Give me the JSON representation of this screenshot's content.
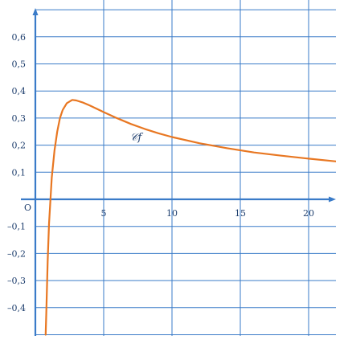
{
  "chart_data": {
    "type": "line",
    "title": "",
    "xlabel": "",
    "ylabel": "",
    "xlim": [
      -1,
      22
    ],
    "ylim": [
      -0.5,
      0.7
    ],
    "grid": true,
    "x_grid_step": 5,
    "y_grid_step": 0.1,
    "x_ticks": [
      {
        "value": 5,
        "label": "5"
      },
      {
        "value": 10,
        "label": "10"
      },
      {
        "value": 15,
        "label": "15"
      },
      {
        "value": 20,
        "label": "20"
      }
    ],
    "y_ticks": [
      {
        "value": 0.6,
        "label": "0,6"
      },
      {
        "value": 0.5,
        "label": "0,5"
      },
      {
        "value": 0.4,
        "label": "0,4"
      },
      {
        "value": 0.3,
        "label": "0,3"
      },
      {
        "value": 0.2,
        "label": "0,2"
      },
      {
        "value": 0.1,
        "label": "0,1"
      },
      {
        "value": -0.1,
        "label": "–0,1"
      },
      {
        "value": -0.2,
        "label": "–0,2"
      },
      {
        "value": -0.3,
        "label": "–0,3"
      },
      {
        "value": -0.4,
        "label": "–0,4"
      }
    ],
    "origin_label": "O",
    "series": [
      {
        "label": "𝒞f",
        "color": "#e87722",
        "points": [
          [
            0.75,
            -0.5
          ],
          [
            0.8,
            -0.42
          ],
          [
            0.9,
            -0.23
          ],
          [
            1.0,
            -0.09
          ],
          [
            1.2,
            0.08
          ],
          [
            1.4,
            0.18
          ],
          [
            1.6,
            0.25
          ],
          [
            1.8,
            0.3
          ],
          [
            2.0,
            0.33
          ],
          [
            2.3,
            0.355
          ],
          [
            2.7,
            0.367
          ],
          [
            3.0,
            0.365
          ],
          [
            3.5,
            0.357
          ],
          [
            4.0,
            0.346
          ],
          [
            5.0,
            0.322
          ],
          [
            6.0,
            0.299
          ],
          [
            7.0,
            0.278
          ],
          [
            8.0,
            0.26
          ],
          [
            9.0,
            0.244
          ],
          [
            10.0,
            0.23
          ],
          [
            12.0,
            0.207
          ],
          [
            14.0,
            0.189
          ],
          [
            16.0,
            0.173
          ],
          [
            18.0,
            0.161
          ],
          [
            20.0,
            0.15
          ],
          [
            22.0,
            0.14
          ]
        ]
      }
    ],
    "axis_color": "#3a7bc8",
    "grid_color": "#3a7bc8"
  }
}
